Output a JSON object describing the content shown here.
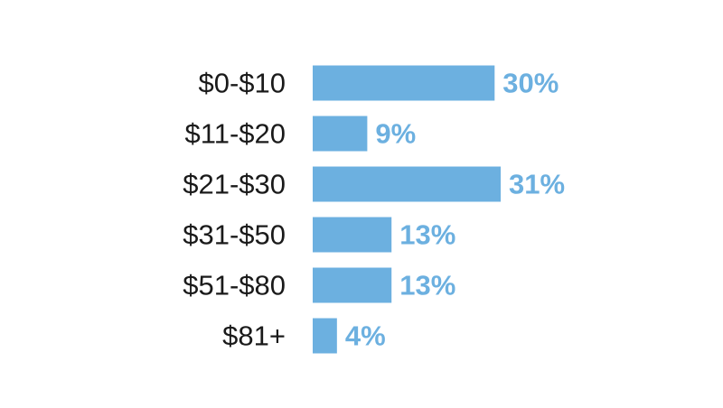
{
  "chart_data": {
    "type": "bar",
    "orientation": "horizontal",
    "categories": [
      "$0-$10",
      "$11-$20",
      "$21-$30",
      "$31-$50",
      "$51-$80",
      "$81+"
    ],
    "values": [
      30,
      9,
      31,
      13,
      13,
      4
    ],
    "value_labels": [
      "30%",
      "9%",
      "31%",
      "13%",
      "13%",
      "4%"
    ],
    "unit": "%",
    "title": "",
    "xlabel": "",
    "ylabel": "",
    "xlim": [
      0,
      31
    ],
    "grid": false,
    "legend": "none",
    "bar_color": "#6cb0e0",
    "label_color": "#6cb0e0",
    "category_color": "#1a1a1a"
  }
}
